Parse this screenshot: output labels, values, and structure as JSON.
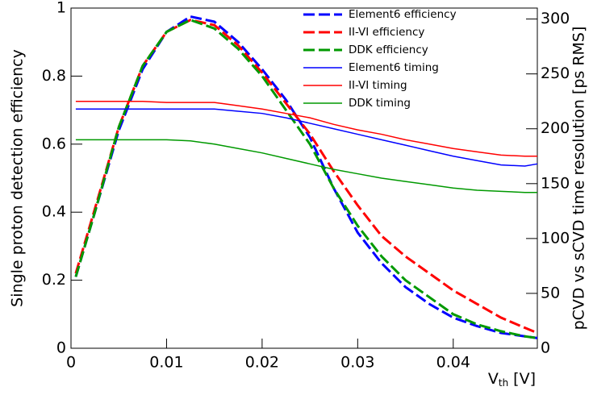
{
  "chart_data": {
    "type": "line",
    "xlabel": {
      "main": "V",
      "sub": "th",
      "unit": "[V]"
    },
    "ylabel": "Single proton detection efficiency",
    "y2label": "pCVD vs sCVD time resolution [ps RMS]",
    "x": [
      0.0005,
      0.0025,
      0.005,
      0.0075,
      0.01,
      0.0125,
      0.015,
      0.0175,
      0.02,
      0.0225,
      0.025,
      0.0275,
      0.03,
      0.0325,
      0.035,
      0.0375,
      0.04,
      0.0425,
      0.045,
      0.0475,
      0.0488
    ],
    "series": [
      {
        "name": "Element6 efficiency",
        "color": "#0000ff",
        "style": "dashed",
        "axis": "y",
        "values": [
          0.21,
          0.4,
          0.64,
          0.82,
          0.93,
          0.975,
          0.96,
          0.9,
          0.82,
          0.73,
          0.62,
          0.47,
          0.34,
          0.25,
          0.18,
          0.13,
          0.09,
          0.065,
          0.045,
          0.035,
          0.03
        ]
      },
      {
        "name": "II-VI efficiency",
        "color": "#ff0000",
        "style": "dashed",
        "axis": "y",
        "values": [
          0.22,
          0.41,
          0.65,
          0.83,
          0.93,
          0.965,
          0.95,
          0.89,
          0.81,
          0.72,
          0.63,
          0.52,
          0.42,
          0.33,
          0.27,
          0.22,
          0.17,
          0.13,
          0.09,
          0.06,
          0.045
        ]
      },
      {
        "name": "DDK efficiency",
        "color": "#009900",
        "style": "dashed",
        "axis": "y",
        "values": [
          0.21,
          0.4,
          0.65,
          0.83,
          0.93,
          0.965,
          0.94,
          0.88,
          0.8,
          0.7,
          0.6,
          0.47,
          0.36,
          0.27,
          0.2,
          0.15,
          0.1,
          0.07,
          0.05,
          0.035,
          0.03
        ]
      },
      {
        "name": "Element6 timing",
        "color": "#0000ff",
        "style": "solid",
        "axis": "y2",
        "values": [
          218,
          218,
          218,
          218,
          218,
          218,
          218,
          216,
          214,
          210,
          205,
          200,
          195,
          190,
          185,
          180,
          175,
          171,
          167,
          166,
          168
        ]
      },
      {
        "name": "II-VI timing",
        "color": "#ff0000",
        "style": "solid",
        "axis": "y2",
        "values": [
          225,
          225,
          225,
          225,
          224,
          224,
          224,
          221,
          218,
          214,
          210,
          204,
          199,
          195,
          190,
          186,
          182,
          179,
          176,
          175,
          175
        ]
      },
      {
        "name": "DDK timing",
        "color": "#009900",
        "style": "solid",
        "axis": "y2",
        "values": [
          190,
          190,
          190,
          190,
          190,
          189,
          186,
          182,
          178,
          173,
          168,
          163,
          159,
          155,
          152,
          149,
          146,
          144,
          143,
          142,
          142
        ]
      }
    ],
    "xlim": [
      0,
      0.0488
    ],
    "xticks": [
      0,
      0.01,
      0.02,
      0.03,
      0.04
    ],
    "ylim": [
      0,
      1
    ],
    "yticks": [
      0,
      0.2,
      0.4,
      0.6,
      0.8,
      1
    ],
    "y2lim": [
      0,
      310
    ],
    "y2ticks": [
      0,
      50,
      100,
      150,
      200,
      250,
      300
    ],
    "legend": "top-right"
  }
}
